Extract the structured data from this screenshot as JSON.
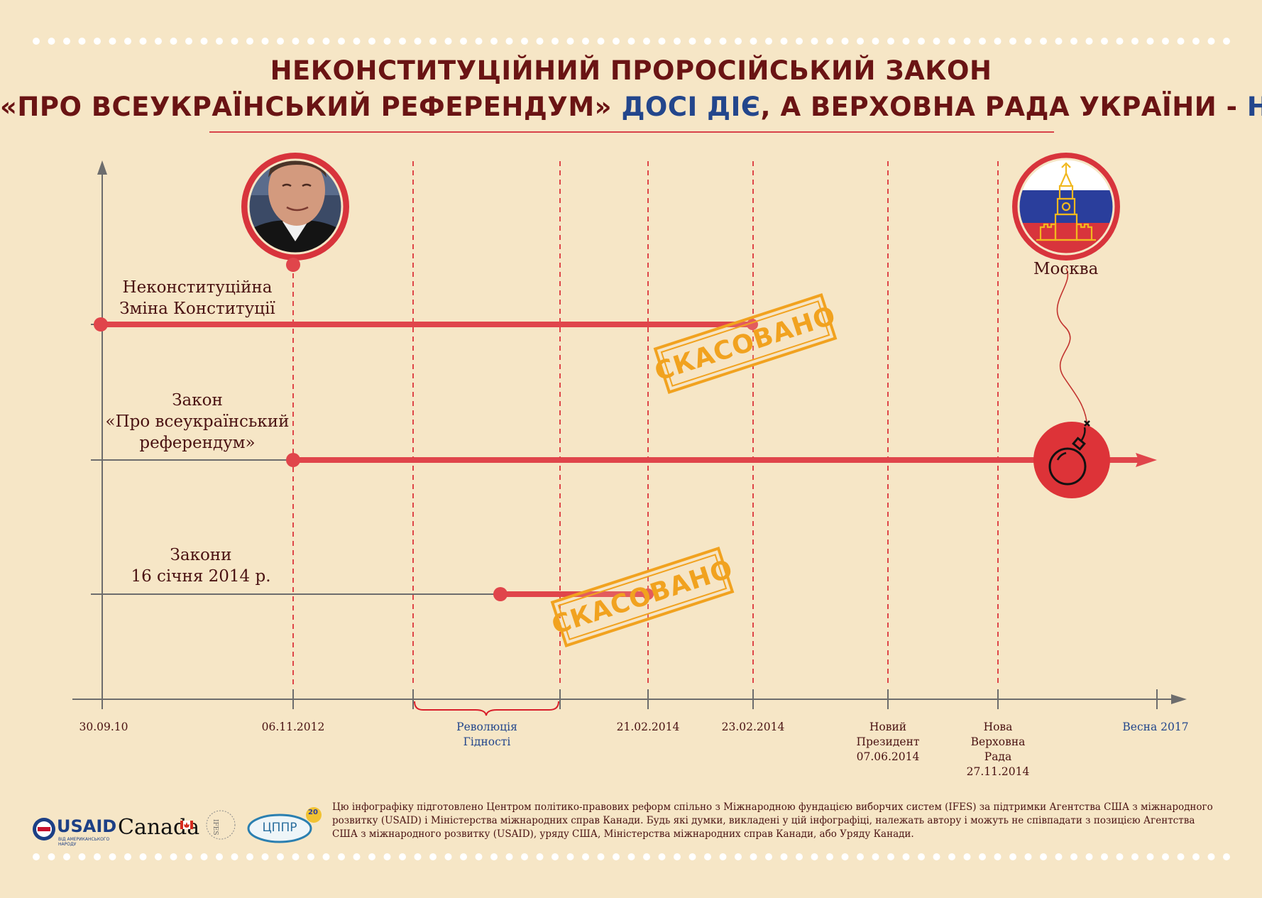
{
  "title": {
    "line1": "НЕКОНСТИТУЦІЙНИЙ ПРОРОСІЙСЬКИЙ ЗАКОН",
    "line2_part1": "«ПРО ВСЕУКРАЇНСЬКИЙ РЕФЕРЕНДУМ»",
    "line2_part2": "ДОСІ ДІЄ",
    "line2_part3": ", А ВЕРХОВНА РАДА УКРАЇНИ - ",
    "line2_part4": "НІ!"
  },
  "rows": [
    {
      "label_line1": "Неконституційна",
      "label_line2": "Зміна Конституції",
      "label_line3": ""
    },
    {
      "label_line1": "Закон",
      "label_line2": "«Про всеукраїнський",
      "label_line3": "референдум»"
    },
    {
      "label_line1": "Закони",
      "label_line2": "16 січня 2014 р.",
      "label_line3": ""
    }
  ],
  "stamp_text": "СКАСОВАНО",
  "moscow_label": "Москва",
  "timeline": [
    {
      "lines": [
        "30.09.10"
      ],
      "color": "dark"
    },
    {
      "lines": [
        "06.11.2012"
      ],
      "color": "dark"
    },
    {
      "lines": [
        "Революція",
        "Гідності"
      ],
      "color": "blue"
    },
    {
      "lines": [
        "21.02.2014"
      ],
      "color": "dark"
    },
    {
      "lines": [
        "23.02.2014"
      ],
      "color": "dark"
    },
    {
      "lines": [
        "Новий",
        "Президент",
        "07.06.2014"
      ],
      "color": "dark"
    },
    {
      "lines": [
        "Нова",
        "Верховна",
        "Рада",
        "27.11.2014"
      ],
      "color": "dark"
    },
    {
      "lines": [
        "Весна 2017"
      ],
      "color": "blue"
    }
  ],
  "footer": {
    "text": "Цю інфографіку підготовлено Центром політико-правових реформ спільно з Міжнародною фундацією виборчих систем (IFES) за підтримки Агентства США з міжнародного розвитку (USAID) і  Міністерства міжнародних справ Канади. Будь які думки, викладені у цій інфографіці, належать автору і можуть не співпадати з позицією Агентства США з міжнародного розвитку (USAID), уряду США, Міністерства міжнародних справ Канади, або Уряду Канади.",
    "usaid": "USAID",
    "usaid_sub": "ВІД АМЕРИКАНСЬКОГО НАРОДУ",
    "canada": "Canada",
    "ifes": "IFES",
    "cppr": "ЦППР",
    "cppr_badge": "20"
  },
  "colors": {
    "background": "#f6e6c6",
    "dark_red": "#6a1414",
    "accent_red": "#e0454b",
    "dashed_red": "#d91f2a",
    "blue": "#23468c",
    "stamp_orange": "#f1a21f",
    "axis_gray": "#6d6d6d"
  },
  "icons": [
    "portrait-photo",
    "kremlin-flag-icon",
    "bomb-icon",
    "fuse-line"
  ]
}
